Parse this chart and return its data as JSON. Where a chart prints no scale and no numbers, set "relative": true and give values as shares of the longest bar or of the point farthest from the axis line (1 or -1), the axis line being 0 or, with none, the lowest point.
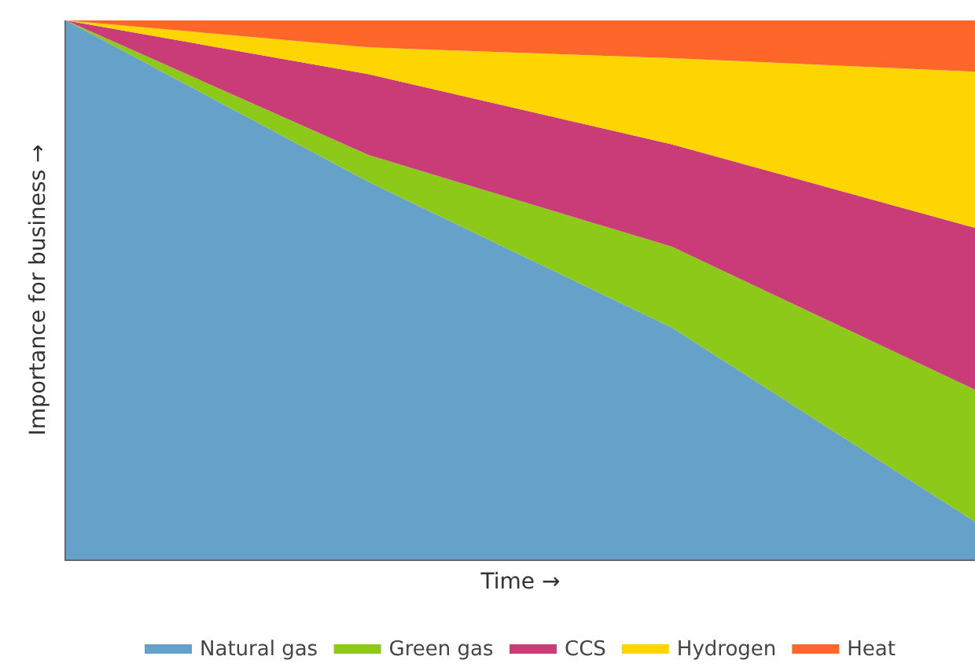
{
  "chart_data": {
    "type": "area",
    "stacked": true,
    "relative": true,
    "xlabel": "Time →",
    "ylabel": "Importance for business →",
    "categories": [
      null,
      null,
      null,
      null
    ],
    "legend": "bottom",
    "series": [
      {
        "name": "Natural gas",
        "color": "#65a1c9",
        "values": [
          1,
          0.7,
          0.43,
          0.07
        ]
      },
      {
        "name": "Green gas",
        "color": "#8dc919",
        "values": [
          0,
          0.05,
          0.15,
          0.245
        ]
      },
      {
        "name": "CCS",
        "color": "#c93c78",
        "values": [
          0,
          0.15,
          0.19,
          0.3
        ]
      },
      {
        "name": "Hydrogen",
        "color": "#ffd500",
        "values": [
          0,
          0.05,
          0.16,
          0.29
        ]
      },
      {
        "name": "Heat",
        "color": "#ff6629",
        "values": [
          0,
          0.05,
          0.07,
          0.095
        ]
      }
    ]
  }
}
